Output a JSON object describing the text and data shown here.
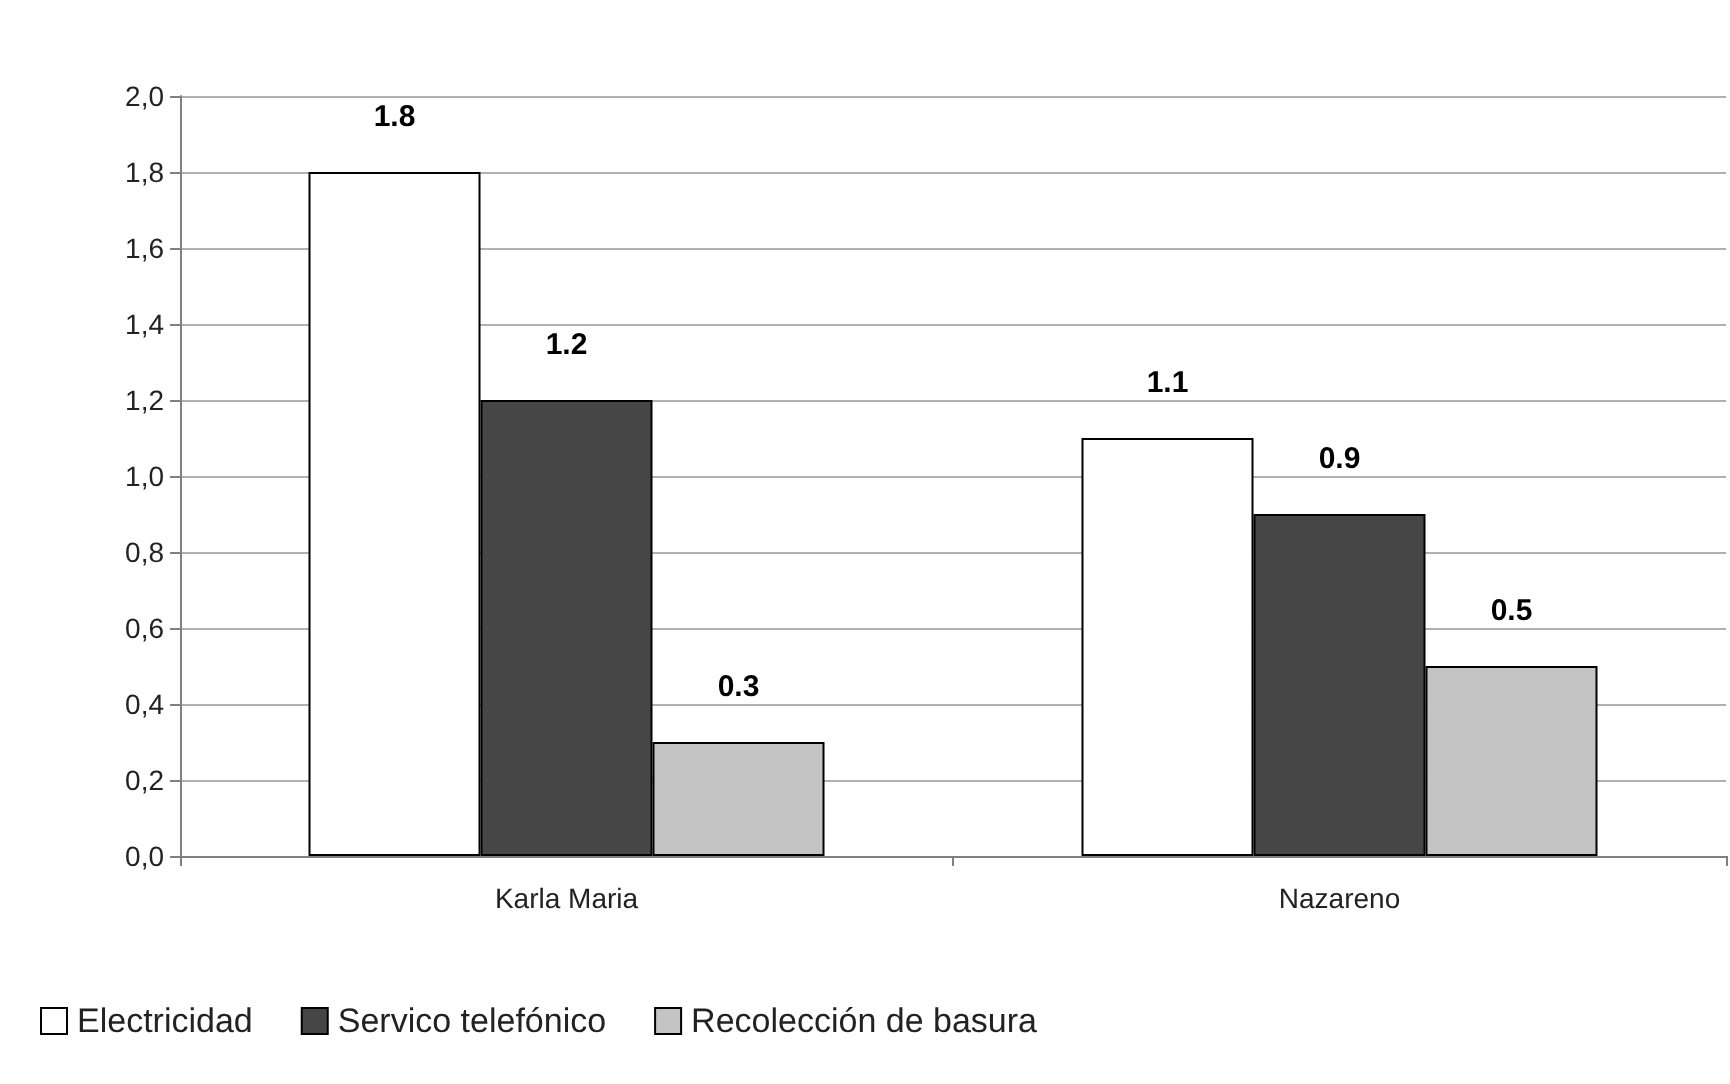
{
  "chart_data": {
    "type": "bar",
    "categories": [
      "Karla Maria",
      "Nazareno"
    ],
    "series": [
      {
        "name": "Electricidad",
        "color": "#ffffff",
        "values": [
          1.8,
          1.1
        ],
        "value_labels": [
          "1.8",
          "1.1"
        ]
      },
      {
        "name": "Servico telefónico",
        "color": "#464646",
        "values": [
          1.2,
          0.9
        ],
        "value_labels": [
          "1.2",
          "0.9"
        ]
      },
      {
        "name": "Recolección de basura",
        "color": "#c4c4c4",
        "values": [
          0.3,
          0.5
        ],
        "value_labels": [
          "0.3",
          "0.5"
        ]
      }
    ],
    "ylim": [
      0,
      2
    ],
    "yticks": [
      {
        "value": 0,
        "label": "0,0"
      },
      {
        "value": 0.2,
        "label": "0,2"
      },
      {
        "value": 0.4,
        "label": "0,4"
      },
      {
        "value": 0.6,
        "label": "0,6"
      },
      {
        "value": 0.8,
        "label": "0,8"
      },
      {
        "value": 1,
        "label": "1,0"
      },
      {
        "value": 1.2,
        "label": "1,2"
      },
      {
        "value": 1.4,
        "label": "1,4"
      },
      {
        "value": 1.6,
        "label": "1,6"
      },
      {
        "value": 1.8,
        "label": "1,8"
      },
      {
        "value": 2,
        "label": "2,0"
      }
    ],
    "grid": "y",
    "legend": "bottom left"
  }
}
